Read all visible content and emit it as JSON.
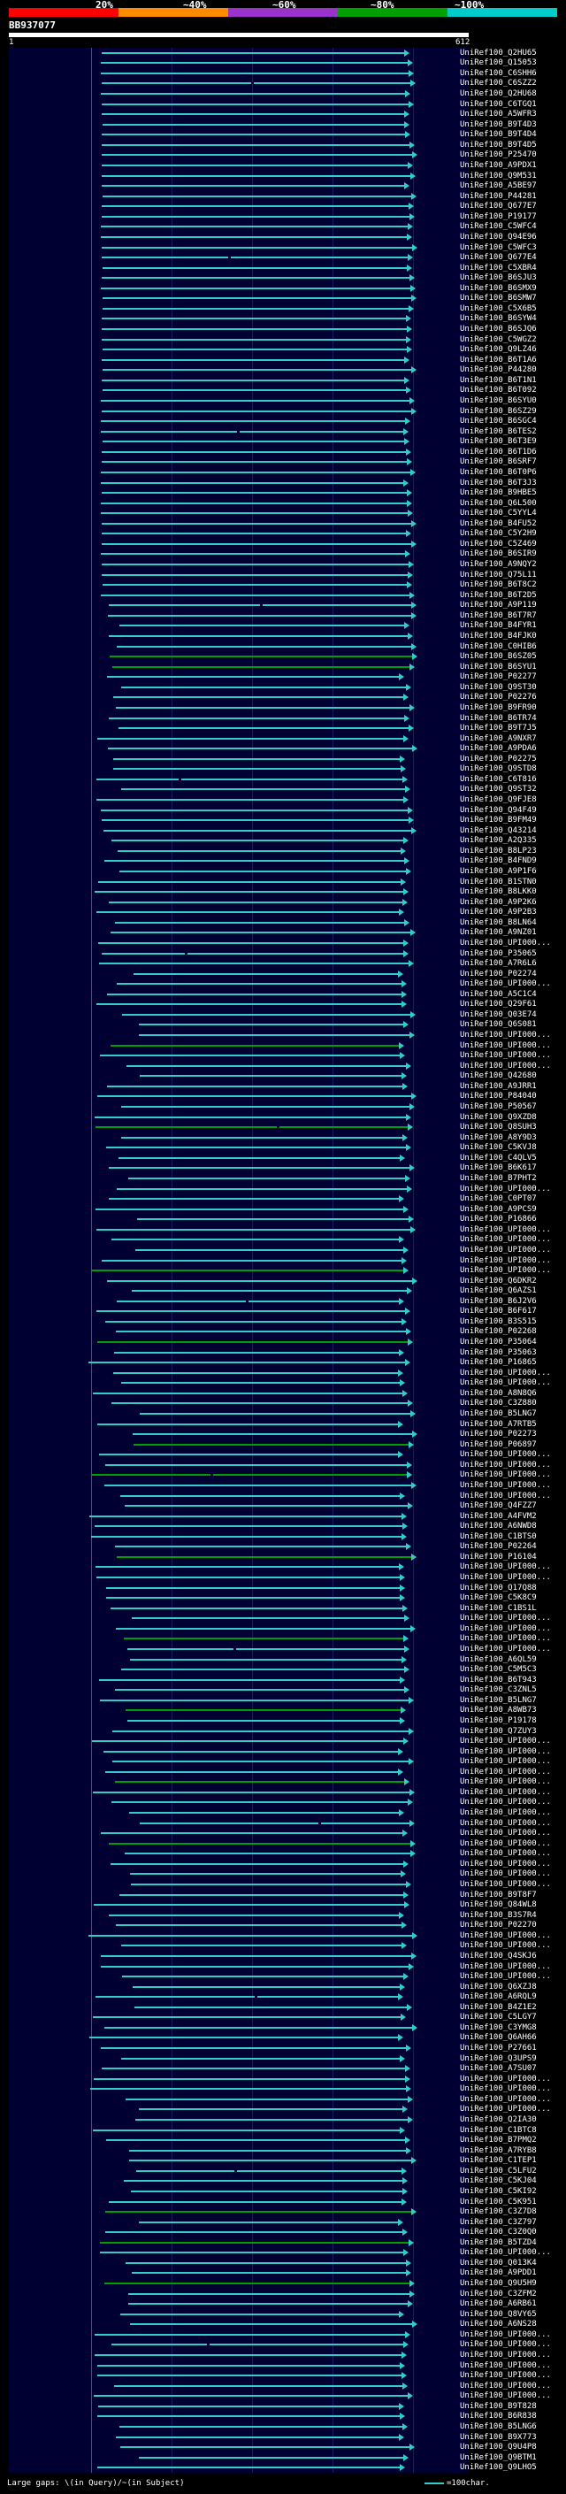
{
  "scale": {
    "colors": [
      "#ff0000",
      "#ff8c00",
      "#9933cc",
      "#00a000",
      "#00cccc"
    ],
    "labels": [
      "20%",
      "~40%",
      "~60%",
      "~80%",
      "~100%"
    ]
  },
  "query": {
    "id": "BB937077",
    "start": "1",
    "end": "612"
  },
  "hits": [
    "UniRef100_Q2HU65",
    "UniRef100_Q15053",
    "UniRef100_C6SHH6",
    "UniRef100_C6SZZ2",
    "UniRef100_Q2HU68",
    "UniRef100_C6TGQ1",
    "UniRef100_A5WFR3",
    "UniRef100_B9T4D3",
    "UniRef100_B9T4D4",
    "UniRef100_B9T4D5",
    "UniRef100_P25470",
    "UniRef100_A9PDX1",
    "UniRef100_Q9M531",
    "UniRef100_A5BE97",
    "UniRef100_P44281",
    "UniRef100_Q677E7",
    "UniRef100_P19177",
    "UniRef100_C5WFC4",
    "UniRef100_Q94E96",
    "UniRef100_C5WFC3",
    "UniRef100_Q677E4",
    "UniRef100_C5XBR4",
    "UniRef100_B6SJU3",
    "UniRef100_B6SMX9",
    "UniRef100_B6SMW7",
    "UniRef100_C5X6B5",
    "UniRef100_B6SYW4",
    "UniRef100_B6SJQ6",
    "UniRef100_C5WGZ2",
    "UniRef100_Q9LZ46",
    "UniRef100_B6T1A6",
    "UniRef100_P44280",
    "UniRef100_B6T1N1",
    "UniRef100_B6T092",
    "UniRef100_B6SYU0",
    "UniRef100_B6SZ29",
    "UniRef100_B6SGC4",
    "UniRef100_B6TES2",
    "UniRef100_B6T3E9",
    "UniRef100_B6T1D6",
    "UniRef100_B6SRF7",
    "UniRef100_B6T0P6",
    "UniRef100_B6T3J3",
    "UniRef100_B9HBE5",
    "UniRef100_Q6L500",
    "UniRef100_C5YYL4",
    "UniRef100_B4FU52",
    "UniRef100_C5Y2H9",
    "UniRef100_C5Z469",
    "UniRef100_B6SIR9",
    "UniRef100_A9NQY2",
    "UniRef100_Q75L11",
    "UniRef100_B6T8C2",
    "UniRef100_B6T2D5",
    "UniRef100_A9P119",
    "UniRef100_B6T7R7",
    "UniRef100_B4FYR1",
    "UniRef100_B4FJK0",
    "UniRef100_C0HIB6",
    "UniRef100_B6SZ05",
    "UniRef100_B6SYU1",
    "UniRef100_P02277",
    "UniRef100_Q9ST30",
    "UniRef100_P02276",
    "UniRef100_B9FR90",
    "UniRef100_B6TR74",
    "UniRef100_B9T7J5",
    "UniRef100_A9NXR7",
    "UniRef100_A9PDA6",
    "UniRef100_P02275",
    "UniRef100_Q9STD8",
    "UniRef100_C6T816",
    "UniRef100_Q9ST32",
    "UniRef100_Q9FJE8",
    "UniRef100_Q94F49",
    "UniRef100_B9FM49",
    "UniRef100_Q43214",
    "UniRef100_A2Q335",
    "UniRef100_B8LP23",
    "UniRef100_B4FND9",
    "UniRef100_A9P1F6",
    "UniRef100_B1STN0",
    "UniRef100_B8LKK0",
    "UniRef100_A9P2K6",
    "UniRef100_A9P2B3",
    "UniRef100_B8LN64",
    "UniRef100_A9NZ01",
    "UniRef100_UPI000...",
    "UniRef100_P35065",
    "UniRef100_A7R6L6",
    "UniRef100_P02274",
    "UniRef100_UPI000...",
    "UniRef100_A5C1C4",
    "UniRef100_Q29F61",
    "UniRef100_Q03E74",
    "UniRef100_Q6S081",
    "UniRef100_UPI000...",
    "UniRef100_UPI000...",
    "UniRef100_UPI000...",
    "UniRef100_UPI000...",
    "UniRef100_Q42680",
    "UniRef100_A9JRR1",
    "UniRef100_P84040",
    "UniRef100_P50567",
    "UniRef100_Q9XZD8",
    "UniRef100_Q8SUH3",
    "UniRef100_A8Y9D3",
    "UniRef100_C5KVJ8",
    "UniRef100_C4QLV5",
    "UniRef100_B6K617",
    "UniRef100_B7PHT2",
    "UniRef100_UPI000...",
    "UniRef100_C0PT07",
    "UniRef100_A9PCS9",
    "UniRef100_P16866",
    "UniRef100_UPI000...",
    "UniRef100_UPI000...",
    "UniRef100_UPI000...",
    "UniRef100_UPI000...",
    "UniRef100_UPI000...",
    "UniRef100_Q6DKR2",
    "UniRef100_Q6AZS1",
    "UniRef100_B6J2V6",
    "UniRef100_B6F617",
    "UniRef100_B3S515",
    "UniRef100_P02268",
    "UniRef100_P35064",
    "UniRef100_P35063",
    "UniRef100_P16865",
    "UniRef100_UPI000...",
    "UniRef100_UPI000...",
    "UniRef100_A8N8Q6",
    "UniRef100_C3Z880",
    "UniRef100_B5LNG7",
    "UniRef100_A7RTB5",
    "UniRef100_P02273",
    "UniRef100_P06897",
    "UniRef100_UPI000...",
    "UniRef100_UPI000...",
    "UniRef100_UPI000...",
    "UniRef100_UPI000...",
    "UniRef100_UPI000...",
    "UniRef100_Q4FZZ7",
    "UniRef100_A4FVM2",
    "UniRef100_A6NWD8",
    "UniRef100_C1BTS0",
    "UniRef100_P02264",
    "UniRef100_P16104",
    "UniRef100_UPI000...",
    "UniRef100_UPI000...",
    "UniRef100_Q17Q88",
    "UniRef100_C5K8C9",
    "UniRef100_C1BS1L",
    "UniRef100_UPI000...",
    "UniRef100_UPI000...",
    "UniRef100_UPI000...",
    "UniRef100_UPI000...",
    "UniRef100_A6QL59",
    "UniRef100_C5M5C3",
    "UniRef100_B6T943",
    "UniRef100_C3ZNL5",
    "UniRef100_B5LNG7",
    "UniRef100_A8WB73",
    "UniRef100_P19178",
    "UniRef100_Q7ZUY3",
    "UniRef100_UPI000...",
    "UniRef100_UPI000...",
    "UniRef100_UPI000...",
    "UniRef100_UPI000...",
    "UniRef100_UPI000...",
    "UniRef100_UPI000...",
    "UniRef100_UPI000...",
    "UniRef100_UPI000...",
    "UniRef100_UPI000...",
    "UniRef100_UPI000...",
    "UniRef100_UPI000...",
    "UniRef100_UPI000...",
    "UniRef100_UPI000...",
    "UniRef100_UPI000...",
    "UniRef100_UPI000...",
    "UniRef100_B9T8F7",
    "UniRef100_Q84WL8",
    "UniRef100_B3S7R4",
    "UniRef100_P02270",
    "UniRef100_UPI000...",
    "UniRef100_UPI000...",
    "UniRef100_Q4SKJ6",
    "UniRef100_UPI000...",
    "UniRef100_UPI000...",
    "UniRef100_Q6XZJ8",
    "UniRef100_A6RQL9",
    "UniRef100_B4Z1E2",
    "UniRef100_C5LGY7",
    "UniRef100_C3YMG8",
    "UniRef100_Q6AH66",
    "UniRef100_P27661",
    "UniRef100_Q3UPS9",
    "UniRef100_A7SU07",
    "UniRef100_UPI000...",
    "UniRef100_UPI000...",
    "UniRef100_UPI000...",
    "UniRef100_UPI000...",
    "UniRef100_Q2IA30",
    "UniRef100_C1BTC8",
    "UniRef100_B7PMQ2",
    "UniRef100_A7RYB8",
    "UniRef100_C1TEP1",
    "UniRef100_C5LFU2",
    "UniRef100_C5KJ04",
    "UniRef100_C5KI92",
    "UniRef100_C5K951",
    "UniRef100_C3Z7D8",
    "UniRef100_C3Z797",
    "UniRef100_C3Z0Q0",
    "UniRef100_B5TZD4",
    "UniRef100_UPI000...",
    "UniRef100_Q013K4",
    "UniRef100_A9PDD1",
    "UniRef100_Q9U5H9",
    "UniRef100_C3ZFM2",
    "UniRef100_A6RB61",
    "UniRef100_Q8VY65",
    "UniRef100_A6NS28",
    "UniRef100_UPI000...",
    "UniRef100_UPI000...",
    "UniRef100_UPI000...",
    "UniRef100_UPI000...",
    "UniRef100_UPI000...",
    "UniRef100_UPI000...",
    "UniRef100_UPI000...",
    "UniRef100_B9T828",
    "UniRef100_B6R838",
    "UniRef100_B5LNG6",
    "UniRef100_B9X773",
    "UniRef100_Q9U4P8",
    "UniRef100_Q9BTM1",
    "UniRef100_Q9LHO5"
  ],
  "legend": {
    "text": "Large gaps: \\(in Query)/~(in Subject)",
    "scale_text": "=100char.",
    "swatch_color": "#33cccc"
  },
  "colors": {
    "full": "#33cccc",
    "green": "#00a000",
    "panel": "#000033"
  }
}
